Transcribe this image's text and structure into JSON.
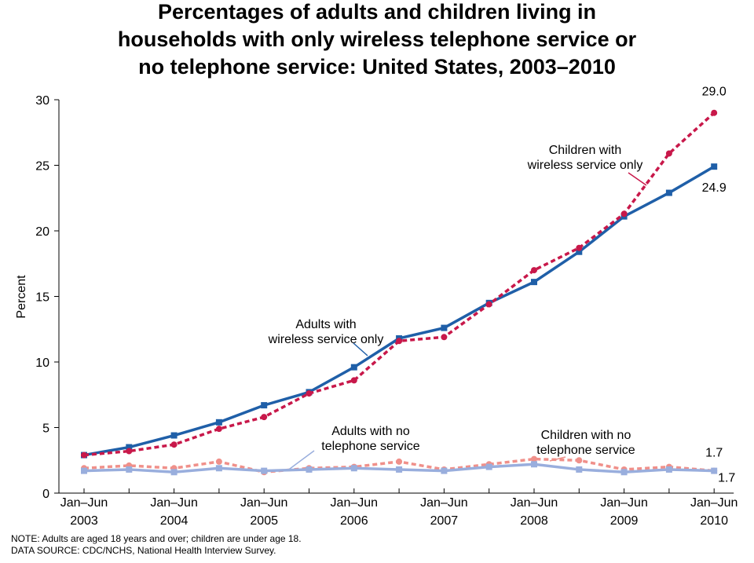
{
  "chart_data": {
    "type": "line",
    "title": "Percentages of adults and children living in\nhouseholds with only wireless telephone service or\nno telephone service: United States, 2003–2010",
    "y_label": "Percent",
    "notes": [
      "NOTE: Adults are aged 18 years and over; children are under age 18.",
      "DATA SOURCE: CDC/NCHS, National Health Interview Survey."
    ],
    "categories": [
      "Jan–Jun\n2003",
      null,
      "Jan–Jun\n2004",
      null,
      "Jan–Jun\n2005",
      null,
      "Jan–Jun\n2006",
      null,
      "Jan–Jun\n2007",
      null,
      "Jan–Jun\n2008",
      null,
      "Jan–Jun\n2009",
      null,
      "Jan–Jun\n2010"
    ],
    "ylim": [
      0,
      30
    ],
    "yticks": [
      0,
      5,
      10,
      15,
      20,
      25,
      30
    ],
    "series": [
      {
        "name": "Adults with\nwireless service only",
        "color": "#1f5fa8",
        "marker": "square",
        "dashed": false,
        "values": [
          2.9,
          3.5,
          4.4,
          5.4,
          6.7,
          7.7,
          9.6,
          11.8,
          12.6,
          14.5,
          16.1,
          18.4,
          21.1,
          22.9,
          24.9
        ]
      },
      {
        "name": "Children with\nwireless service only",
        "color": "#c8184a",
        "marker": "circle",
        "dashed": true,
        "values": [
          2.9,
          3.2,
          3.7,
          4.9,
          5.8,
          7.6,
          8.6,
          11.6,
          11.9,
          14.4,
          17.0,
          18.7,
          21.3,
          25.9,
          29.0
        ],
        "value_labels": [
          null,
          null,
          null,
          null,
          null,
          null,
          null,
          null,
          null,
          null,
          null,
          null,
          null,
          null,
          "29.0"
        ]
      },
      {
        "name": "Adults with no\ntelephone service",
        "color": "#99aedd",
        "marker": "square",
        "dashed": false,
        "values": [
          1.7,
          1.8,
          1.6,
          1.9,
          1.7,
          1.8,
          1.9,
          1.8,
          1.7,
          2.0,
          2.2,
          1.8,
          1.6,
          1.8,
          1.7
        ]
      },
      {
        "name": "Children with no\ntelephone service",
        "color": "#f0908a",
        "marker": "circle",
        "dashed": true,
        "values": [
          1.9,
          2.1,
          1.9,
          2.4,
          1.6,
          1.9,
          2.0,
          2.4,
          1.8,
          2.2,
          2.6,
          2.5,
          1.8,
          2.0,
          1.7
        ]
      }
    ]
  }
}
